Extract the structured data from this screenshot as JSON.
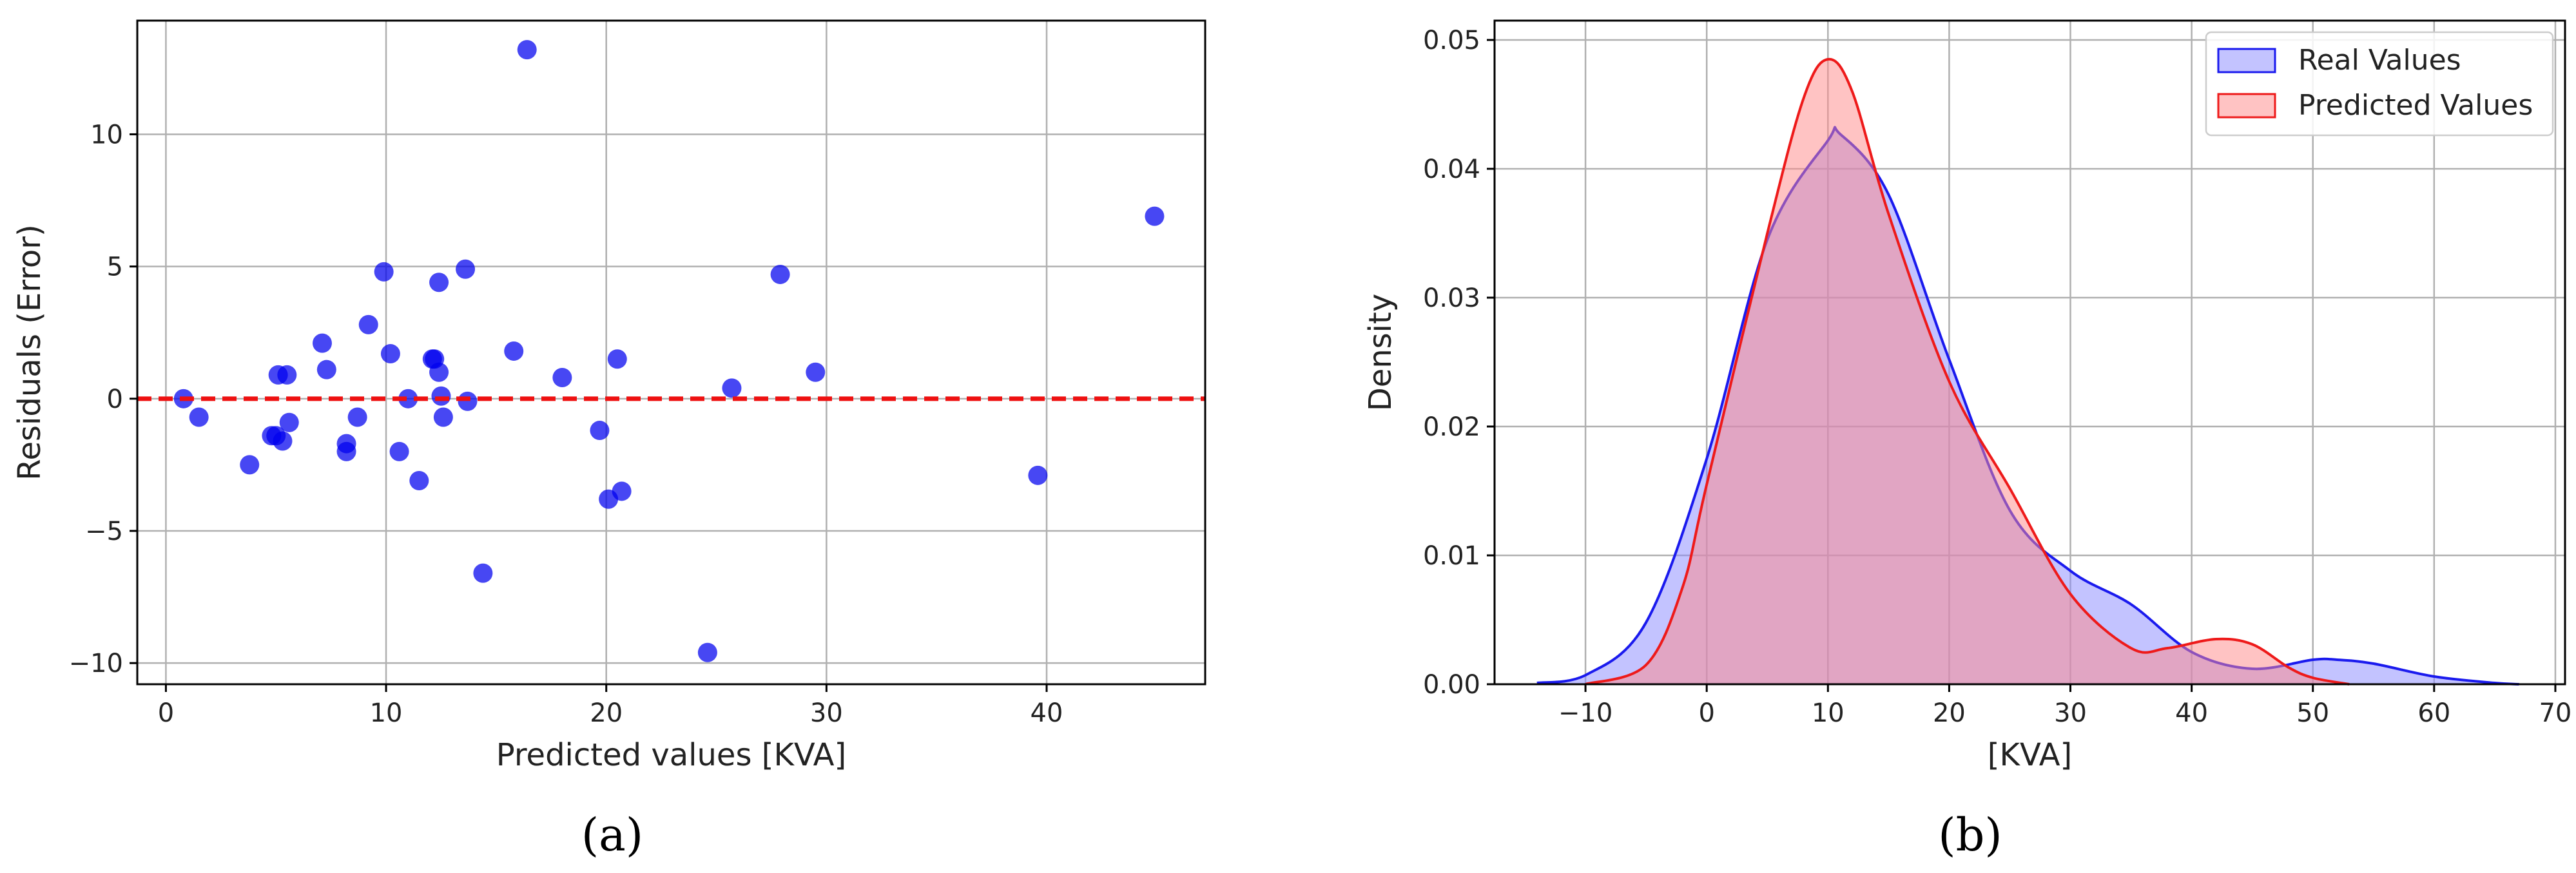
{
  "chart_data": [
    {
      "type": "scatter",
      "panel_label": "(a)",
      "xlabel": "Predicted values [KVA]",
      "ylabel": "Residuals (Error)",
      "xlim": [
        -1.3,
        47.2
      ],
      "ylim": [
        -10.8,
        14.3
      ],
      "xticks": [
        0,
        10,
        20,
        30,
        40
      ],
      "yticks": [
        -10,
        -5,
        0,
        5,
        10
      ],
      "grid": true,
      "point_color": "#0000ee",
      "reference_line": {
        "y": 0,
        "color": "#ee1111",
        "style": "dashed"
      },
      "points": [
        [
          0.8,
          0.0
        ],
        [
          1.5,
          -0.7
        ],
        [
          3.8,
          -2.5
        ],
        [
          4.8,
          -1.4
        ],
        [
          5.0,
          -1.4
        ],
        [
          5.1,
          0.9
        ],
        [
          5.3,
          -1.6
        ],
        [
          5.5,
          0.9
        ],
        [
          5.6,
          -0.9
        ],
        [
          7.1,
          2.1
        ],
        [
          7.3,
          1.1
        ],
        [
          8.2,
          -1.7
        ],
        [
          8.2,
          -2.0
        ],
        [
          8.7,
          -0.7
        ],
        [
          9.2,
          2.8
        ],
        [
          9.9,
          4.8
        ],
        [
          10.2,
          1.7
        ],
        [
          10.6,
          -2.0
        ],
        [
          11.0,
          0.0
        ],
        [
          11.5,
          -3.1
        ],
        [
          12.1,
          1.5
        ],
        [
          12.2,
          1.5
        ],
        [
          12.4,
          1.0
        ],
        [
          12.4,
          4.4
        ],
        [
          12.5,
          0.1
        ],
        [
          12.6,
          -0.7
        ],
        [
          13.6,
          4.9
        ],
        [
          13.7,
          -0.1
        ],
        [
          14.4,
          -6.6
        ],
        [
          15.8,
          1.8
        ],
        [
          16.4,
          13.2
        ],
        [
          18.0,
          0.8
        ],
        [
          19.7,
          -1.2
        ],
        [
          20.1,
          -3.8
        ],
        [
          20.5,
          1.5
        ],
        [
          20.7,
          -3.5
        ],
        [
          24.6,
          -9.6
        ],
        [
          25.7,
          0.4
        ],
        [
          27.9,
          4.7
        ],
        [
          29.5,
          1.0
        ],
        [
          39.6,
          -2.9
        ],
        [
          44.9,
          6.9
        ]
      ]
    },
    {
      "type": "area",
      "panel_label": "(b)",
      "xlabel": "[KVA]",
      "ylabel": "Density",
      "xlim": [
        -17.5,
        70.8
      ],
      "ylim": [
        0.0,
        0.0515
      ],
      "xticks": [
        -10,
        0,
        10,
        20,
        30,
        40,
        50,
        60,
        70
      ],
      "yticks": [
        0.0,
        0.01,
        0.02,
        0.03,
        0.04,
        0.05
      ],
      "ytick_labels": [
        "0.00",
        "0.01",
        "0.02",
        "0.03",
        "0.04",
        "0.05"
      ],
      "grid": true,
      "legend_position": "top-right",
      "series": [
        {
          "name": "Real Values",
          "line_color": "#1a1aee",
          "fill_color": "#8888ff",
          "x": [
            -14,
            -10,
            -5,
            0,
            5,
            10,
            11,
            15,
            20,
            25,
            30,
            35,
            40,
            45,
            50,
            52,
            55,
            60,
            65,
            67
          ],
          "y": [
            0.0001,
            0.0007,
            0.0048,
            0.0175,
            0.0345,
            0.0422,
            0.0427,
            0.038,
            0.0252,
            0.0135,
            0.0088,
            0.0062,
            0.0025,
            0.0012,
            0.0019,
            0.0019,
            0.0016,
            0.0006,
            0.0001,
            0.0
          ]
        },
        {
          "name": "Predicted Values",
          "line_color": "#ee1a1a",
          "fill_color": "#ff8888",
          "x": [
            -10,
            -5,
            -2,
            0,
            5,
            8,
            10,
            12,
            15,
            20,
            25,
            30,
            35,
            38,
            42,
            45,
            48,
            50,
            53
          ],
          "y": [
            0.0,
            0.0015,
            0.0075,
            0.0155,
            0.035,
            0.0455,
            0.0485,
            0.046,
            0.0365,
            0.0235,
            0.0152,
            0.007,
            0.0028,
            0.0028,
            0.0035,
            0.0031,
            0.0013,
            0.0005,
            0.0
          ]
        }
      ]
    }
  ]
}
